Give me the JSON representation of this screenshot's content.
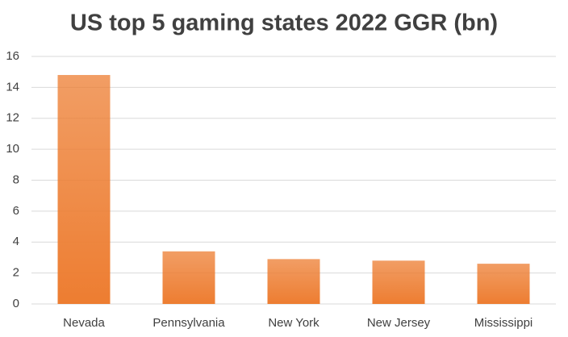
{
  "chart_data": {
    "type": "bar",
    "title": "US top 5 gaming states 2022 GGR (bn)",
    "categories": [
      "Nevada",
      "Pennsylvania",
      "New York",
      "New Jersey",
      "Mississippi"
    ],
    "values": [
      14.8,
      3.4,
      2.9,
      2.8,
      2.6
    ],
    "color": "#ed7d31",
    "ylim": [
      0,
      16
    ],
    "yticks": [
      0,
      2,
      4,
      6,
      8,
      10,
      12,
      14,
      16
    ],
    "grid": true
  }
}
